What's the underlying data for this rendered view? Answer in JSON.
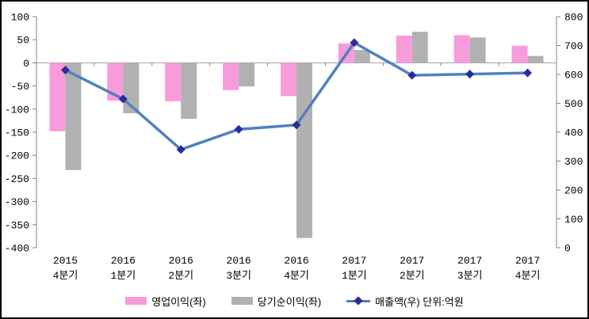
{
  "chart_data": {
    "type": "combo-bar-line",
    "title": "",
    "categories": [
      "2015 4분기",
      "2016 1분기",
      "2016 2분기",
      "2016 3분기",
      "2016 4분기",
      "2017 1분기",
      "2017 2분기",
      "2017 3분기",
      "2017 4분기"
    ],
    "category_lines": [
      [
        "2015",
        "4분기"
      ],
      [
        "2016",
        "1분기"
      ],
      [
        "2016",
        "2분기"
      ],
      [
        "2016",
        "3분기"
      ],
      [
        "2016",
        "4분기"
      ],
      [
        "2017",
        "1분기"
      ],
      [
        "2017",
        "2분기"
      ],
      [
        "2017",
        "3분기"
      ],
      [
        "2017",
        "4분기"
      ]
    ],
    "series": [
      {
        "name": "영업이익(좌)",
        "type": "bar",
        "axis": "left",
        "color": "#F89BDB",
        "values": [
          -148,
          -82,
          -83,
          -59,
          -72,
          42,
          59,
          60,
          37
        ]
      },
      {
        "name": "당기순이익(좌)",
        "type": "bar",
        "axis": "left",
        "color": "#B1B1B1",
        "values": [
          -232,
          -109,
          -121,
          -51,
          -379,
          28,
          67,
          55,
          15
        ]
      },
      {
        "name": "매출액(우) 단위:억원",
        "type": "line",
        "axis": "right",
        "color": "#4F81BD",
        "marker": "diamond",
        "marker_color": "#2D2A9D",
        "values": [
          615,
          515,
          340,
          410,
          425,
          710,
          597,
          601,
          605
        ]
      }
    ],
    "left_axis": {
      "min": -400,
      "max": 100,
      "tick_step": 50,
      "tick_labels": [
        "100",
        "50",
        "0",
        "-50",
        "-100",
        "-150",
        "-200",
        "-250",
        "-300",
        "-350",
        "-400"
      ]
    },
    "right_axis": {
      "min": 0,
      "max": 800,
      "tick_step": 100,
      "tick_labels": [
        "800",
        "700",
        "600",
        "500",
        "400",
        "300",
        "200",
        "100",
        "0"
      ]
    },
    "gridlines": "zero-line-only",
    "legend_position": "bottom",
    "colors": {
      "background": "#FFFFFF",
      "border": "#000000",
      "axis_line": "#808080",
      "zero_line": "#A0A0A0",
      "text": "#000000"
    }
  }
}
